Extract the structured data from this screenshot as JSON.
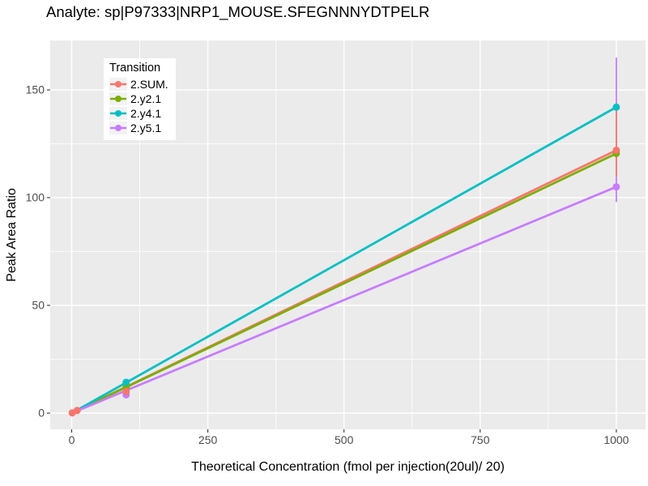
{
  "chart_data": {
    "type": "line",
    "title": "Analyte: sp|P97333|NRP1_MOUSE.SFEGNNNYDTPELR",
    "xlabel": "Theoretical Concentration (fmol per injection(20ul)/ 20)",
    "ylabel": "Peak Area Ratio",
    "legend_title": "Transition",
    "legend_position": "inside-top-left",
    "grid": true,
    "x_ticks": [
      0,
      250,
      500,
      750,
      1000
    ],
    "x_minor_ticks": [
      125,
      375,
      625,
      875
    ],
    "y_ticks": [
      0,
      50,
      100,
      150
    ],
    "y_minor_ticks": [
      25,
      75,
      125
    ],
    "xlim": [
      -39,
      1054
    ],
    "ylim": [
      -7.5,
      173
    ],
    "colors": {
      "panel_bg": "#EBEBEB",
      "grid": "#FFFFFF",
      "tick_mark": "#333333",
      "tick_label": "#4D4D4D",
      "text": "#000000",
      "legend_bg": "#FFFFFF",
      "legend_key_bg": "#F2F2F2"
    },
    "series": [
      {
        "name": "2.SUM.",
        "color": "#F8766D",
        "line": {
          "x": [
            1,
            1000
          ],
          "y": [
            0.1,
            122
          ]
        },
        "points": {
          "x": [
            1,
            10,
            100,
            1000
          ],
          "y": [
            0.1,
            1.2,
            10,
            122
          ]
        },
        "errorbars": [
          {
            "x": 1000,
            "ymin": 110,
            "ymax": 140.5
          }
        ]
      },
      {
        "name": "2.y2.1",
        "color": "#7CAE00",
        "line": {
          "x": [
            1,
            1000
          ],
          "y": [
            0.1,
            120.5
          ]
        },
        "points": {
          "x": [
            100,
            1000
          ],
          "y": [
            12,
            120.5
          ]
        },
        "errorbars": []
      },
      {
        "name": "2.y4.1",
        "color": "#00BFC4",
        "line": {
          "x": [
            1,
            1000
          ],
          "y": [
            0.1,
            142
          ]
        },
        "points": {
          "x": [
            100,
            1000
          ],
          "y": [
            14.3,
            142
          ]
        },
        "errorbars": []
      },
      {
        "name": "2.y5.1",
        "color": "#C77CFF",
        "line": {
          "x": [
            1,
            1000
          ],
          "y": [
            0.1,
            105
          ]
        },
        "points": {
          "x": [
            100,
            1000
          ],
          "y": [
            8.5,
            105
          ]
        },
        "errorbars": [
          {
            "x": 1000,
            "ymin": 98,
            "ymax": 165
          }
        ]
      }
    ]
  }
}
